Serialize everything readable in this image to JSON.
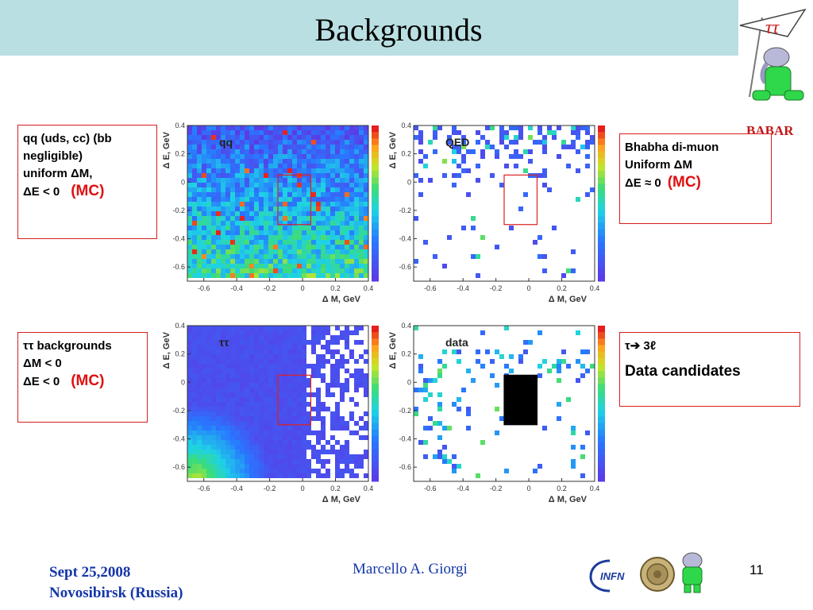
{
  "title": "Backgrounds",
  "boxes": {
    "qq": {
      "line1": "qq (uds, cc) (bb",
      "line2": "negligible)",
      "line3": "uniform ΔM,",
      "line4": "ΔE < 0",
      "mc": "(MC)"
    },
    "qed": {
      "line1": "Bhabha di-muon",
      "line2": "Uniform ΔM",
      "line3": "ΔE ≈ 0",
      "mc": "(MC)"
    },
    "tautau": {
      "line1": "ττ backgrounds",
      "line2": "ΔM < 0",
      "line3": "ΔE < 0",
      "mc": "(MC)"
    },
    "data": {
      "line1": "τ➔ 3ℓ",
      "line2": "Data candidates"
    }
  },
  "plots": {
    "qq": {
      "label": "qq"
    },
    "qed": {
      "label": "QED"
    },
    "tautau": {
      "label": "ττ"
    },
    "data": {
      "label": "data"
    }
  },
  "axes": {
    "ylabel": "Δ E, GeV",
    "xlabel": "Δ M, GeV",
    "x_ticks": [
      "-0.6",
      "-0.4",
      "-0.2",
      "0",
      "0.2",
      "0.4"
    ],
    "y_ticks": [
      "0.4",
      "0.2",
      "0",
      "-0.2",
      "-0.4",
      "-0.6"
    ]
  },
  "logo": {
    "banner_text": "ττ",
    "name": "BABAR"
  },
  "footer": {
    "date": "Sept 25,2008",
    "place": "Novosibirsk (Russia)",
    "author": "Marcello A. Giorgi",
    "page": "11",
    "infn": "INFN"
  }
}
